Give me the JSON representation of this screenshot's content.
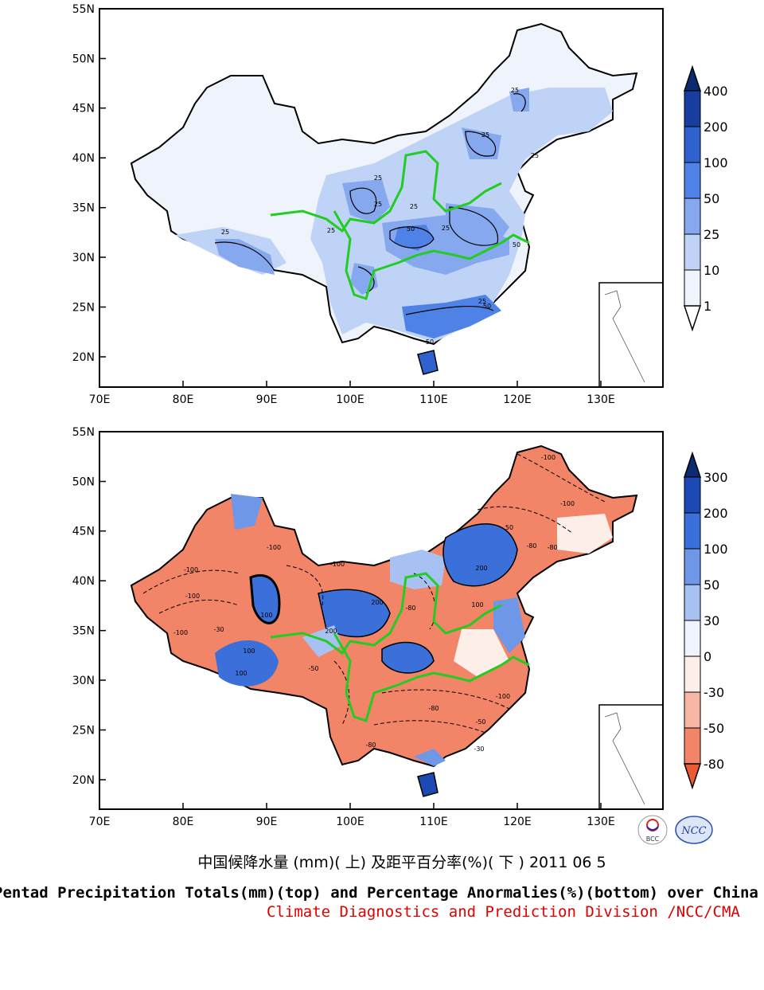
{
  "top_map": {
    "lat_labels": [
      "55N",
      "50N",
      "45N",
      "40N",
      "35N",
      "30N",
      "25N",
      "20N"
    ],
    "lon_labels": [
      "70E",
      "80E",
      "90E",
      "100E",
      "110E",
      "120E",
      "130E"
    ],
    "colorbar": {
      "labels": [
        "400",
        "200",
        "100",
        "50",
        "25",
        "10",
        "1"
      ],
      "colors": [
        "#0b2a6f",
        "#173e9e",
        "#2f62cf",
        "#4f82e6",
        "#86a8ef",
        "#bfd3f6",
        "#eef3fc",
        "#ffffff"
      ]
    },
    "contour_labels": [
      "25",
      "25",
      "25",
      "25",
      "25",
      "25",
      "50",
      "25",
      "25",
      "25",
      "50",
      "50",
      "25",
      "50"
    ]
  },
  "bottom_map": {
    "lat_labels": [
      "55N",
      "50N",
      "45N",
      "40N",
      "35N",
      "30N",
      "25N",
      "20N"
    ],
    "lon_labels": [
      "70E",
      "80E",
      "90E",
      "100E",
      "110E",
      "120E",
      "130E"
    ],
    "colorbar": {
      "labels": [
        "300",
        "200",
        "100",
        "50",
        "30",
        "0",
        "-30",
        "-50",
        "-80"
      ],
      "colors": [
        "#0b2a6f",
        "#1d49b5",
        "#3b6fd9",
        "#6f97e8",
        "#a7c1f2",
        "#eef3fc",
        "#fdeee8",
        "#f7b5a3",
        "#f28467",
        "#ea5a35"
      ]
    },
    "contour_labels": [
      "-100",
      "-100",
      "-80",
      "-100",
      "-100",
      "-100",
      "-100",
      "100",
      "100",
      "200",
      "-80",
      "200",
      "100",
      "200",
      "-80",
      "100",
      "-50",
      "-30",
      "50",
      "-100",
      "-80",
      "-30",
      "-50",
      "-80",
      "-100"
    ]
  },
  "caption_cn": "中国候降水量 (mm)( 上) 及距平百分率(%)( 下 ) 2011 06 5",
  "caption_en": "Pentad Precipitation Totals(mm)(top) and Percentage Anormalies(%)(bottom) over China",
  "caption_org": "Climate Diagnostics and Prediction Division /NCC/CMA",
  "logos": [
    "BCC",
    "NCC"
  ]
}
